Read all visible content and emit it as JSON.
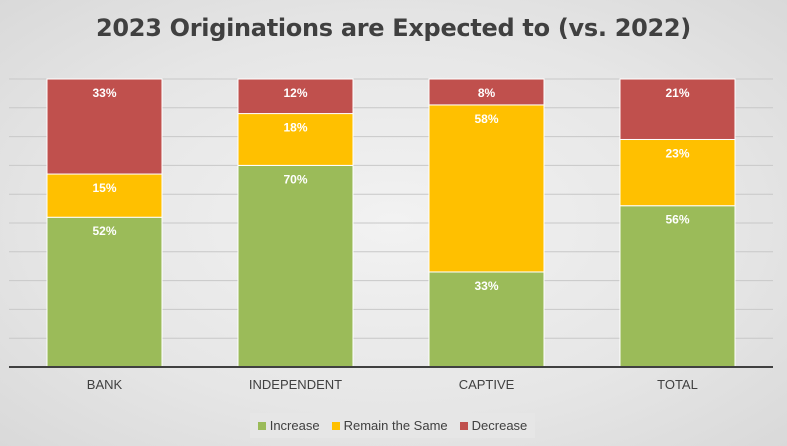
{
  "chart_data": {
    "type": "bar",
    "stacked": true,
    "title": "2023 Originations are Expected to (vs. 2022)",
    "categories": [
      "BANK",
      "INDEPENDENT",
      "CAPTIVE",
      "TOTAL"
    ],
    "series": [
      {
        "name": "Increase",
        "color": "#9bbb59",
        "values": [
          52,
          70,
          33,
          56
        ]
      },
      {
        "name": "Remain the Same",
        "color": "#ffc000",
        "values": [
          15,
          18,
          58,
          23
        ]
      },
      {
        "name": "Decrease",
        "color": "#c0504d",
        "values": [
          33,
          12,
          8,
          21
        ]
      }
    ],
    "ylim": [
      0,
      100
    ],
    "grid": true,
    "legend": "bottom",
    "label_format": "%"
  }
}
